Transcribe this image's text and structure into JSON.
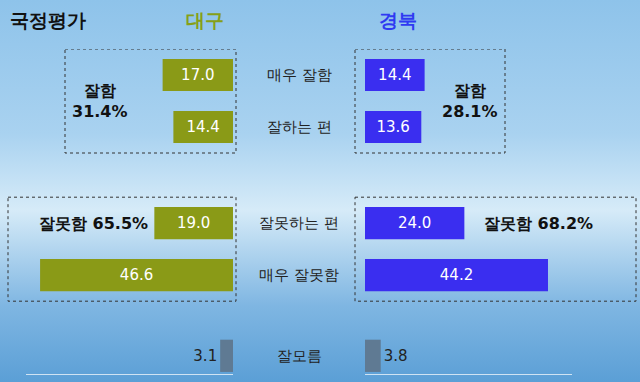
{
  "chart_data": {
    "type": "bar",
    "title": "국정평가",
    "orientation": "horizontal",
    "categories": [
      "매우 잘함",
      "잘하는 편",
      "잘못하는 편",
      "매우 잘못함",
      "잘모름"
    ],
    "series": [
      {
        "name": "대구",
        "color": "#86a017",
        "colors": [
          "#8a9a17",
          "#8a9a17",
          "#8a9a17",
          "#8a9a17",
          "#5f7a93"
        ],
        "values": [
          17.0,
          14.4,
          19.0,
          46.6,
          3.1
        ],
        "value_labels": [
          "17.0",
          "14.4",
          "19.0",
          "46.6",
          "3.1"
        ]
      },
      {
        "name": "경북",
        "color": "#2f3af2",
        "colors": [
          "#3a2ef0",
          "#3a2ef0",
          "#3a2ef0",
          "#3a2ef0",
          "#5f7a93"
        ],
        "values": [
          14.4,
          13.6,
          24.0,
          44.2,
          3.8
        ],
        "value_labels": [
          "14.4",
          "13.6",
          "24.0",
          "44.2",
          "3.8"
        ]
      }
    ],
    "groups": [
      {
        "label": "잘함",
        "categories": [
          "매우 잘함",
          "잘하는 편"
        ],
        "values": [
          31.4,
          28.1
        ],
        "value_labels": [
          "31.4%",
          "28.1%"
        ]
      },
      {
        "label": "잘못함",
        "categories": [
          "잘못하는 편",
          "매우 잘못함"
        ],
        "values": [
          65.5,
          68.2
        ],
        "value_labels": [
          "65.5%",
          "68.2%"
        ]
      }
    ],
    "xlim": [
      0,
      50
    ],
    "data_labels": true,
    "tick_labels": false,
    "grid": false
  }
}
